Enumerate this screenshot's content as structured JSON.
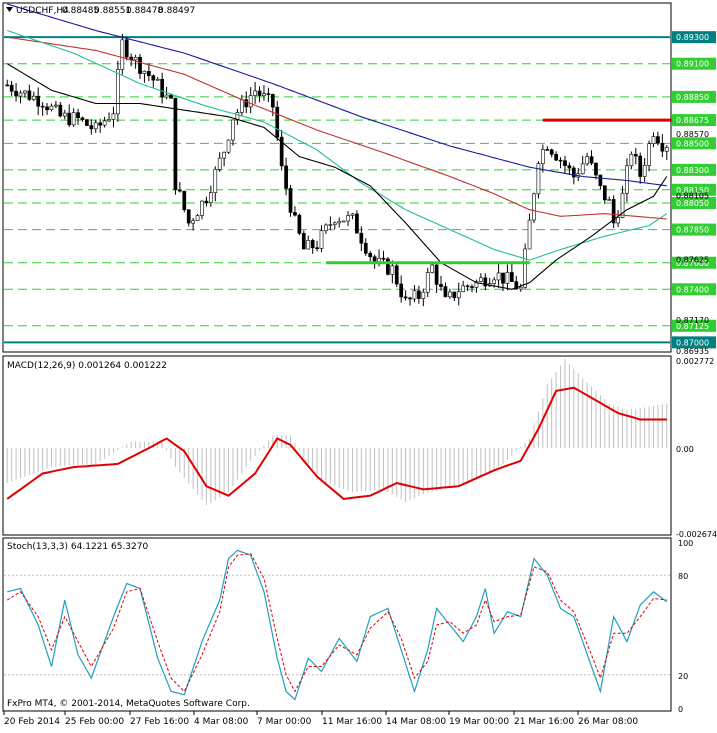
{
  "chart_data": [
    {
      "panel": "price",
      "type": "candlestick",
      "symbol": "USDCHF,H4",
      "ohlc": {
        "open": "0.88485",
        "high": "0.88551",
        "low": "0.88478",
        "close": "0.88497"
      },
      "ylim": [
        0.86935,
        0.8955
      ],
      "right_axis_labels": [
        "0.89300",
        "0.89100",
        "0.88850",
        "0.88675",
        "0.88500",
        "0.88300",
        "0.88150",
        "0.88050",
        "0.87850",
        "0.87600",
        "0.87400",
        "0.87125",
        "0.87000",
        "0.86935",
        "0.88570",
        "0.88105",
        "0.87625",
        "0.87170"
      ],
      "highlighted_levels": [
        {
          "value": "0.89300",
          "color": "#008080"
        },
        {
          "value": "0.89100",
          "color": "#32cd32"
        },
        {
          "value": "0.88850",
          "color": "#32cd32"
        },
        {
          "value": "0.88675",
          "color": "#32cd32"
        },
        {
          "value": "0.88500",
          "color": "#32cd32"
        },
        {
          "value": "0.88300",
          "color": "#32cd32"
        },
        {
          "value": "0.88150",
          "color": "#32cd32"
        },
        {
          "value": "0.88050",
          "color": "#32cd32"
        },
        {
          "value": "0.87850",
          "color": "#32cd32"
        },
        {
          "value": "0.87600",
          "color": "#32cd32"
        },
        {
          "value": "0.87400",
          "color": "#32cd32"
        },
        {
          "value": "0.87125",
          "color": "#32cd32"
        },
        {
          "value": "0.87000",
          "color": "#008080"
        }
      ],
      "plain_levels": [
        "0.88570",
        "0.88105",
        "0.87625",
        "0.87170",
        "0.86935"
      ],
      "horizontal_lines": [
        {
          "value": 0.893,
          "color": "#008080",
          "width": "thick"
        },
        {
          "value": 0.87,
          "color": "#008080",
          "width": "thick"
        },
        {
          "value": 0.891,
          "color": "#32cd32",
          "style": "dashed"
        },
        {
          "value": 0.8885,
          "color": "#32cd32",
          "style": "dashed"
        },
        {
          "value": 0.88675,
          "color": "#32cd32",
          "style": "dashed"
        },
        {
          "value": 0.885,
          "color": "#32cd32",
          "style": "dashed"
        },
        {
          "value": 0.883,
          "color": "#32cd32",
          "style": "dashed"
        },
        {
          "value": 0.8815,
          "color": "#32cd32",
          "style": "dashed"
        },
        {
          "value": 0.8805,
          "color": "#32cd32",
          "style": "dashed"
        },
        {
          "value": 0.8785,
          "color": "#32cd32",
          "style": "dashed"
        },
        {
          "value": 0.876,
          "color": "#32cd32",
          "style": "dashed"
        },
        {
          "value": 0.874,
          "color": "#32cd32",
          "style": "dashed"
        },
        {
          "value": 0.87125,
          "color": "#32cd32",
          "style": "dashed"
        }
      ],
      "segments": [
        {
          "name": "resistance",
          "color": "#e00000",
          "value": 0.88675,
          "from_bar": 121,
          "to_bar": 154
        },
        {
          "name": "support",
          "color": "#32cd32",
          "value": 0.876,
          "from_bar": 72,
          "to_bar": 118
        }
      ],
      "bars": {
        "count": 150,
        "path": [
          [
            0,
            0.8894
          ],
          [
            3,
            0.8889
          ],
          [
            8,
            0.8882
          ],
          [
            12,
            0.887
          ],
          [
            16,
            0.8868
          ],
          [
            20,
            0.886
          ],
          [
            24,
            0.8875
          ],
          [
            26,
            0.8925
          ],
          [
            29,
            0.8912
          ],
          [
            33,
            0.8898
          ],
          [
            37,
            0.888
          ],
          [
            38,
            0.882
          ],
          [
            41,
            0.879
          ],
          [
            45,
            0.881
          ],
          [
            49,
            0.8845
          ],
          [
            51,
            0.887
          ],
          [
            56,
            0.889
          ],
          [
            60,
            0.8878
          ],
          [
            62,
            0.883
          ],
          [
            65,
            0.879
          ],
          [
            67,
            0.877
          ],
          [
            70,
            0.8774
          ],
          [
            74,
            0.8795
          ],
          [
            78,
            0.8792
          ],
          [
            83,
            0.876
          ],
          [
            87,
            0.8755
          ],
          [
            90,
            0.873
          ],
          [
            93,
            0.8735
          ],
          [
            96,
            0.8757
          ],
          [
            99,
            0.873
          ],
          [
            102,
            0.874
          ],
          [
            106,
            0.8745
          ],
          [
            110,
            0.8752
          ],
          [
            114,
            0.8745
          ],
          [
            116,
            0.874
          ],
          [
            118,
            0.879
          ],
          [
            120,
            0.884
          ],
          [
            122,
            0.885
          ],
          [
            125,
            0.8838
          ],
          [
            128,
            0.8825
          ],
          [
            131,
            0.884
          ],
          [
            134,
            0.8815
          ],
          [
            136,
            0.8805
          ],
          [
            137,
            0.879
          ],
          [
            139,
            0.881
          ],
          [
            141,
            0.8845
          ],
          [
            143,
            0.8826
          ],
          [
            146,
            0.886
          ],
          [
            148,
            0.885
          ],
          [
            149,
            0.885
          ]
        ]
      },
      "moving_averages": [
        {
          "color": "#1a1aa0",
          "path": [
            [
              0,
              0.8955
            ],
            [
              20,
              0.8935
            ],
            [
              40,
              0.8918
            ],
            [
              60,
              0.8895
            ],
            [
              80,
              0.887
            ],
            [
              100,
              0.8848
            ],
            [
              118,
              0.8832
            ],
            [
              130,
              0.8825
            ],
            [
              140,
              0.8822
            ],
            [
              149,
              0.8818
            ]
          ]
        },
        {
          "color": "#c03030",
          "path": [
            [
              0,
              0.893
            ],
            [
              20,
              0.892
            ],
            [
              40,
              0.8902
            ],
            [
              55,
              0.888
            ],
            [
              70,
              0.886
            ],
            [
              85,
              0.8843
            ],
            [
              100,
              0.8825
            ],
            [
              110,
              0.8812
            ],
            [
              118,
              0.88
            ],
            [
              125,
              0.8795
            ],
            [
              135,
              0.8797
            ],
            [
              142,
              0.8795
            ],
            [
              149,
              0.8793
            ]
          ]
        },
        {
          "color": "#20c090",
          "path": [
            [
              0,
              0.8935
            ],
            [
              15,
              0.8918
            ],
            [
              30,
              0.8895
            ],
            [
              45,
              0.8878
            ],
            [
              58,
              0.8866
            ],
            [
              70,
              0.8845
            ],
            [
              80,
              0.882
            ],
            [
              90,
              0.88
            ],
            [
              100,
              0.8785
            ],
            [
              110,
              0.877
            ],
            [
              118,
              0.8762
            ],
            [
              125,
              0.877
            ],
            [
              135,
              0.878
            ],
            [
              145,
              0.8788
            ],
            [
              149,
              0.8797
            ]
          ]
        },
        {
          "color": "#000000",
          "path": [
            [
              0,
              0.891
            ],
            [
              10,
              0.889
            ],
            [
              20,
              0.888
            ],
            [
              30,
              0.888
            ],
            [
              40,
              0.8875
            ],
            [
              50,
              0.887
            ],
            [
              58,
              0.8862
            ],
            [
              66,
              0.884
            ],
            [
              74,
              0.8832
            ],
            [
              82,
              0.8818
            ],
            [
              90,
              0.879
            ],
            [
              98,
              0.876
            ],
            [
              106,
              0.8745
            ],
            [
              114,
              0.874
            ],
            [
              118,
              0.8745
            ],
            [
              124,
              0.8762
            ],
            [
              132,
              0.878
            ],
            [
              140,
              0.88
            ],
            [
              146,
              0.881
            ],
            [
              149,
              0.8825
            ]
          ]
        }
      ]
    },
    {
      "panel": "macd",
      "type": "bar+line",
      "title": "MACD(12,26,9) 0.001264 0.001222",
      "ylim": [
        -0.002674,
        0.002772
      ],
      "axis_labels": [
        "0.002772",
        "0.00",
        "-0.002674"
      ],
      "histogram": [
        [
          0,
          -0.0011
        ],
        [
          10,
          -0.0006
        ],
        [
          20,
          -0.0005
        ],
        [
          28,
          0.0002
        ],
        [
          35,
          0.0002
        ],
        [
          38,
          -0.0006
        ],
        [
          45,
          -0.0018
        ],
        [
          50,
          -0.0014
        ],
        [
          55,
          -0.0004
        ],
        [
          60,
          0.0004
        ],
        [
          64,
          0.0004
        ],
        [
          70,
          -0.001
        ],
        [
          78,
          -0.0014
        ],
        [
          85,
          -0.0013
        ],
        [
          90,
          -0.0017
        ],
        [
          95,
          -0.0014
        ],
        [
          105,
          -0.0011
        ],
        [
          112,
          -0.0005
        ],
        [
          118,
          0.0003
        ],
        [
          122,
          0.002
        ],
        [
          126,
          0.0028
        ],
        [
          130,
          0.0022
        ],
        [
          136,
          0.0014
        ],
        [
          140,
          0.0012
        ],
        [
          145,
          0.0013
        ],
        [
          149,
          0.0014
        ]
      ],
      "signal": [
        [
          0,
          -0.0016
        ],
        [
          8,
          -0.0008
        ],
        [
          15,
          -0.0006
        ],
        [
          25,
          -0.0005
        ],
        [
          32,
          0.0
        ],
        [
          36,
          0.0003
        ],
        [
          40,
          -0.0001
        ],
        [
          45,
          -0.0012
        ],
        [
          50,
          -0.0015
        ],
        [
          56,
          -0.0008
        ],
        [
          61,
          0.0003
        ],
        [
          64,
          0.0001
        ],
        [
          70,
          -0.0009
        ],
        [
          76,
          -0.0016
        ],
        [
          82,
          -0.0015
        ],
        [
          88,
          -0.0011
        ],
        [
          94,
          -0.0013
        ],
        [
          102,
          -0.0012
        ],
        [
          110,
          -0.0007
        ],
        [
          116,
          -0.0004
        ],
        [
          120,
          0.0006
        ],
        [
          124,
          0.0018
        ],
        [
          128,
          0.0019
        ],
        [
          133,
          0.0015
        ],
        [
          138,
          0.0011
        ],
        [
          143,
          0.0009
        ],
        [
          149,
          0.0009
        ]
      ]
    },
    {
      "panel": "stoch",
      "type": "line",
      "title": "Stoch(13,3,3) 64.1221 65.3270",
      "ylim": [
        0,
        100
      ],
      "axis_labels": [
        "100",
        "80",
        "20",
        "0"
      ],
      "levels": [
        20,
        80
      ],
      "main": [
        [
          0,
          70
        ],
        [
          3,
          72
        ],
        [
          7,
          50
        ],
        [
          10,
          25
        ],
        [
          13,
          65
        ],
        [
          16,
          32
        ],
        [
          19,
          18
        ],
        [
          24,
          55
        ],
        [
          27,
          75
        ],
        [
          30,
          72
        ],
        [
          34,
          30
        ],
        [
          37,
          10
        ],
        [
          40,
          8
        ],
        [
          44,
          40
        ],
        [
          48,
          65
        ],
        [
          50,
          90
        ],
        [
          52,
          95
        ],
        [
          55,
          92
        ],
        [
          58,
          70
        ],
        [
          61,
          30
        ],
        [
          63,
          10
        ],
        [
          65,
          5
        ],
        [
          68,
          30
        ],
        [
          71,
          22
        ],
        [
          75,
          42
        ],
        [
          79,
          28
        ],
        [
          82,
          55
        ],
        [
          86,
          60
        ],
        [
          89,
          35
        ],
        [
          92,
          10
        ],
        [
          95,
          35
        ],
        [
          97,
          60
        ],
        [
          100,
          50
        ],
        [
          103,
          40
        ],
        [
          106,
          55
        ],
        [
          108,
          72
        ],
        [
          110,
          45
        ],
        [
          113,
          58
        ],
        [
          116,
          55
        ],
        [
          119,
          90
        ],
        [
          122,
          80
        ],
        [
          125,
          60
        ],
        [
          128,
          55
        ],
        [
          132,
          25
        ],
        [
          134,
          10
        ],
        [
          137,
          55
        ],
        [
          140,
          40
        ],
        [
          143,
          62
        ],
        [
          146,
          70
        ],
        [
          149,
          64
        ]
      ],
      "signal": [
        [
          0,
          65
        ],
        [
          3,
          70
        ],
        [
          7,
          55
        ],
        [
          10,
          35
        ],
        [
          13,
          55
        ],
        [
          16,
          40
        ],
        [
          19,
          25
        ],
        [
          24,
          48
        ],
        [
          27,
          70
        ],
        [
          30,
          72
        ],
        [
          34,
          40
        ],
        [
          37,
          18
        ],
        [
          40,
          10
        ],
        [
          44,
          32
        ],
        [
          48,
          58
        ],
        [
          50,
          85
        ],
        [
          52,
          92
        ],
        [
          55,
          93
        ],
        [
          58,
          78
        ],
        [
          61,
          42
        ],
        [
          63,
          20
        ],
        [
          65,
          10
        ],
        [
          68,
          25
        ],
        [
          71,
          25
        ],
        [
          75,
          38
        ],
        [
          79,
          32
        ],
        [
          82,
          48
        ],
        [
          86,
          58
        ],
        [
          89,
          42
        ],
        [
          92,
          18
        ],
        [
          95,
          28
        ],
        [
          97,
          50
        ],
        [
          100,
          52
        ],
        [
          103,
          45
        ],
        [
          106,
          50
        ],
        [
          108,
          65
        ],
        [
          110,
          52
        ],
        [
          113,
          55
        ],
        [
          116,
          56
        ],
        [
          119,
          85
        ],
        [
          122,
          82
        ],
        [
          125,
          65
        ],
        [
          128,
          58
        ],
        [
          132,
          32
        ],
        [
          134,
          18
        ],
        [
          137,
          45
        ],
        [
          140,
          45
        ],
        [
          143,
          55
        ],
        [
          146,
          66
        ],
        [
          149,
          65
        ]
      ]
    }
  ],
  "time_axis": [
    "20 Feb 2014",
    "25 Feb 00:00",
    "27 Feb 16:00",
    "4 Mar 08:00",
    "7 Mar 00:00",
    "11 Mar 16:00",
    "14 Mar 08:00",
    "19 Mar 00:00",
    "21 Mar 16:00",
    "26 Mar 08:00"
  ],
  "copyright": "FxPro MT4, © 2001-2014, MetaQuotes Software Corp.",
  "colors": {
    "bull": "#000000",
    "bear": "#000000",
    "macd_hist": "#c0c0c0",
    "signal_line": "#e00000",
    "stoch_main": "#20a0c0",
    "stoch_signal": "#e00000",
    "grid_level": "#32cd32",
    "key_level": "#008080"
  }
}
